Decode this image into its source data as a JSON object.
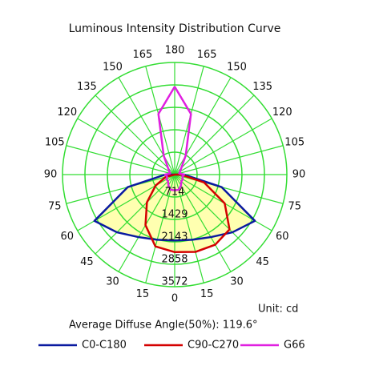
{
  "chart_data": {
    "type": "polar",
    "title": "Luminous Intensity Distribution Curve",
    "unit": "Unit: cd",
    "annotation": "Average Diffuse Angle(50%): 119.6°",
    "x": [
      -180,
      -165,
      -150,
      -135,
      -120,
      -105,
      -90,
      -75,
      -60,
      -45,
      -30,
      -15,
      0,
      15,
      30,
      45,
      60,
      75,
      90,
      105,
      120,
      135,
      150,
      165,
      180
    ],
    "series": [
      {
        "name": "C0-C180",
        "color": "#0a1aa0",
        "fill": "#ffffb0",
        "values": [
          0,
          0,
          0,
          0,
          0,
          0,
          300,
          1550,
          2950,
          2600,
          2300,
          2150,
          2100,
          2150,
          2300,
          2600,
          2950,
          1550,
          300,
          0,
          0,
          0,
          0,
          0,
          0
        ]
      },
      {
        "name": "C90-C270",
        "color": "#d40000",
        "fill": "#ffffb0",
        "values": [
          0,
          0,
          0,
          0,
          0,
          0,
          0,
          300,
          700,
          1250,
          1860,
          2370,
          2470,
          2550,
          2580,
          2470,
          1840,
          970,
          200,
          0,
          0,
          0,
          0,
          0,
          0
        ]
      },
      {
        "name": "G66",
        "color": "#e020e0",
        "values": [
          2800,
          2000,
          700,
          300,
          200,
          150,
          300,
          250,
          300,
          300,
          400,
          500,
          500,
          500,
          400,
          300,
          300,
          250,
          300,
          150,
          200,
          300,
          700,
          2000,
          2800
        ]
      }
    ],
    "rlim": [
      0,
      3572
    ],
    "rticks": [
      714,
      1429,
      2143,
      2858,
      3572
    ],
    "xticks": [
      {
        "value": -165,
        "label": "165"
      },
      {
        "value": -150,
        "label": "150"
      },
      {
        "value": -135,
        "label": "135"
      },
      {
        "value": -120,
        "label": "120"
      },
      {
        "value": -105,
        "label": "105"
      },
      {
        "value": -90,
        "label": "90"
      },
      {
        "value": -75,
        "label": "75"
      },
      {
        "value": -60,
        "label": "60"
      },
      {
        "value": -45,
        "label": "45"
      },
      {
        "value": -30,
        "label": "30"
      },
      {
        "value": -15,
        "label": "15"
      },
      0,
      15,
      30,
      45,
      60,
      75,
      90,
      105,
      120,
      135,
      150,
      165,
      180
    ],
    "grid_color": "#33dd33"
  }
}
